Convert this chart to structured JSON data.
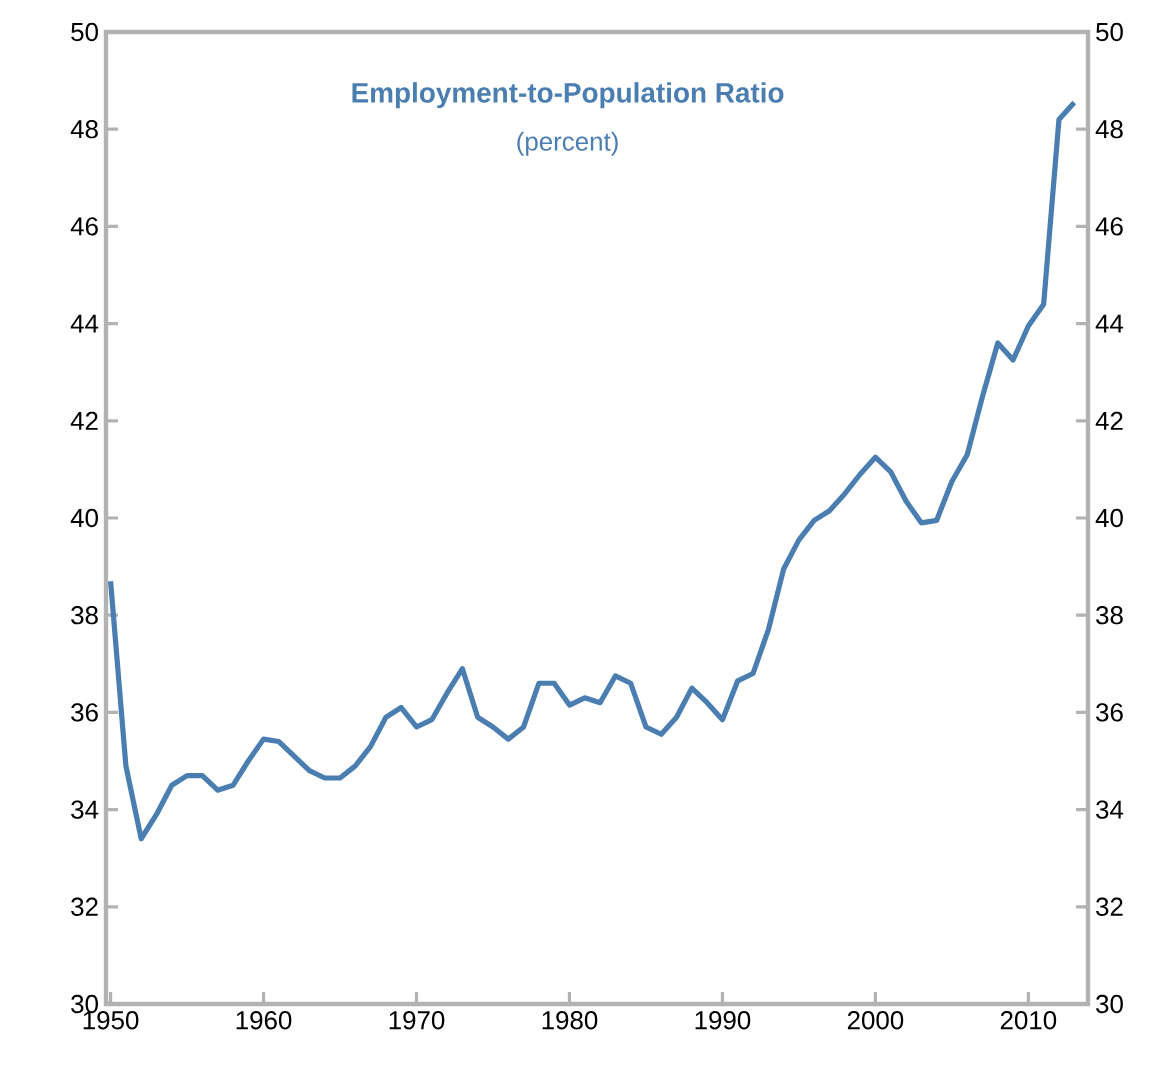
{
  "chart_data": {
    "type": "line",
    "title": "Employment-to-Population Ratio",
    "subtitle": "(percent)",
    "x": [
      1950,
      1951,
      1952,
      1953,
      1954,
      1955,
      1956,
      1957,
      1958,
      1959,
      1960,
      1961,
      1962,
      1963,
      1964,
      1965,
      1966,
      1967,
      1968,
      1969,
      1970,
      1971,
      1972,
      1973,
      1974,
      1975,
      1976,
      1977,
      1978,
      1979,
      1980,
      1981,
      1982,
      1983,
      1984,
      1985,
      1986,
      1987,
      1988,
      1989,
      1990,
      1991,
      1992,
      1993,
      1994,
      1995,
      1996,
      1997,
      1998,
      1999,
      2000,
      2001,
      2002,
      2003,
      2004,
      2005,
      2006,
      2007,
      2008,
      2009,
      2010,
      2011,
      2012,
      2013
    ],
    "values": [
      38.7,
      34.9,
      33.4,
      33.9,
      34.5,
      34.7,
      34.7,
      34.4,
      34.5,
      35.0,
      35.45,
      35.4,
      35.1,
      34.8,
      34.65,
      34.65,
      34.9,
      35.3,
      35.9,
      36.1,
      35.7,
      35.85,
      36.4,
      36.9,
      35.9,
      35.7,
      35.45,
      35.7,
      36.6,
      36.6,
      36.15,
      36.3,
      36.2,
      36.75,
      36.6,
      35.7,
      35.55,
      35.9,
      36.5,
      36.2,
      35.85,
      36.65,
      36.8,
      37.7,
      38.95,
      39.55,
      39.95,
      40.15,
      40.5,
      40.9,
      41.25,
      40.95,
      40.35,
      39.9,
      39.95,
      40.75,
      41.3,
      42.5,
      43.6,
      43.25,
      43.95,
      44.4,
      48.2,
      48.55
    ],
    "color": "#4a7eb0",
    "xlim": [
      1949.7,
      2013.9
    ],
    "xticks": [
      1950,
      1960,
      1970,
      1980,
      1990,
      2000,
      2010
    ],
    "ylim": [
      30,
      50
    ],
    "yticks": [
      30,
      32,
      34,
      36,
      38,
      40,
      42,
      44,
      46,
      48,
      50
    ],
    "y2lim": [
      30,
      50
    ],
    "y2ticks": [
      30,
      32,
      34,
      36,
      38,
      40,
      42,
      44,
      46,
      48,
      50
    ]
  }
}
